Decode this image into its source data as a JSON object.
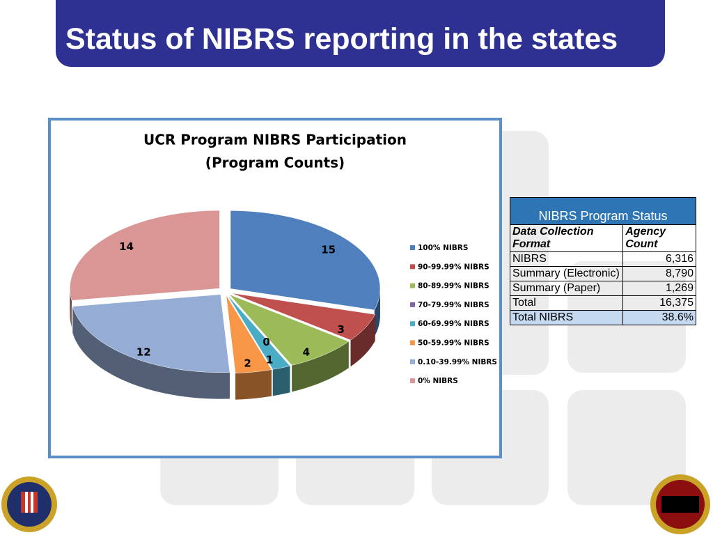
{
  "header": {
    "title": "Status of NIBRS reporting in the states"
  },
  "chart_data": {
    "type": "pie",
    "title": "UCR Program NIBRS Participation",
    "subtitle": "(Program Counts)",
    "categories": [
      "100% NIBRS",
      "90-99.99% NIBRS",
      "80-89.99% NIBRS",
      "70-79.99% NIBRS",
      "60-69.99% NIBRS",
      "50-59.99% NIBRS",
      "0.10-39.99% NIBRS",
      "0% NIBRS"
    ],
    "values": [
      15,
      3,
      4,
      0,
      1,
      2,
      12,
      14
    ],
    "colors": [
      "#4f7fbd",
      "#c0504d",
      "#9bbb59",
      "#8064a2",
      "#4bacc6",
      "#f79646",
      "#95acd4",
      "#d99694"
    ],
    "legend": "right"
  },
  "table": {
    "title": "NIBRS Program Status",
    "header": [
      "Data Collection Format",
      "Agency Count"
    ],
    "rows": [
      [
        "NIBRS",
        "6,316"
      ],
      [
        "Summary (Electronic)",
        "8,790"
      ],
      [
        "Summary (Paper)",
        "1,269"
      ],
      [
        "Total",
        "16,375"
      ],
      [
        "Total NIBRS",
        "38.6%"
      ]
    ]
  }
}
